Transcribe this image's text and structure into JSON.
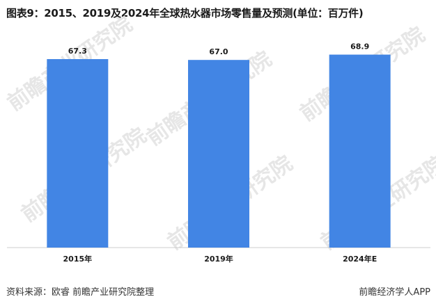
{
  "title": "图表9：2015、2019及2024年全球热水器市场零售量及预测(单位：百万件)",
  "footer": {
    "source": "资料来源：欧睿 前瞻产业研究院整理",
    "brand": "前瞻经济学人APP"
  },
  "watermark": "前瞻产业研究院",
  "colors": {
    "bar": "#4285E4",
    "axis": "#cccccc",
    "text": "#1a1a1a"
  },
  "chart_data": {
    "type": "bar",
    "categories": [
      "2015年",
      "2019年",
      "2024年E"
    ],
    "values": [
      67.3,
      67.0,
      68.9
    ],
    "data_labels": [
      "67.3",
      "67.0",
      "68.9"
    ],
    "ylim": [
      0,
      74
    ],
    "grid": false,
    "legend": "none"
  }
}
